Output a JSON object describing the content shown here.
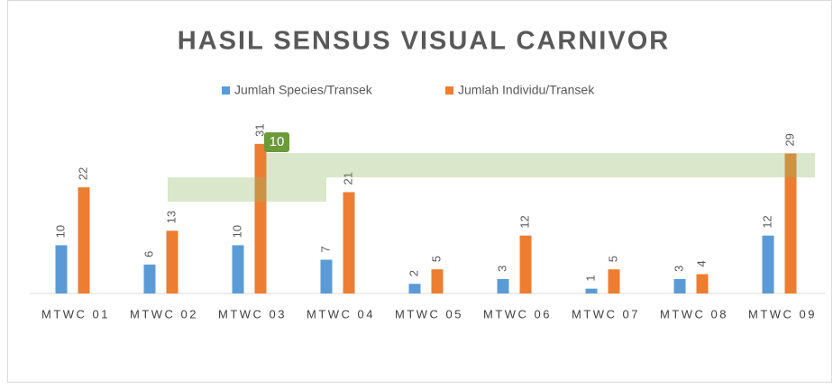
{
  "chart_data": {
    "type": "bar",
    "title": "HASIL SENSUS VISUAL CARNIVOR",
    "categories": [
      "MTWC 01",
      "MTWC 02",
      "MTWC 03",
      "MTWC 04",
      "MTWC 05",
      "MTWC 06",
      "MTWC 07",
      "MTWC 08",
      "MTWC 09"
    ],
    "series": [
      {
        "name": "Jumlah Species/Transek",
        "color": "#5b9bd5",
        "values": [
          10,
          6,
          10,
          7,
          2,
          3,
          1,
          3,
          12
        ]
      },
      {
        "name": "Jumlah Individu/Transek",
        "color": "#ed7d31",
        "values": [
          22,
          13,
          31,
          21,
          5,
          12,
          5,
          4,
          29
        ]
      }
    ],
    "annotation": "10",
    "legend": "top"
  }
}
